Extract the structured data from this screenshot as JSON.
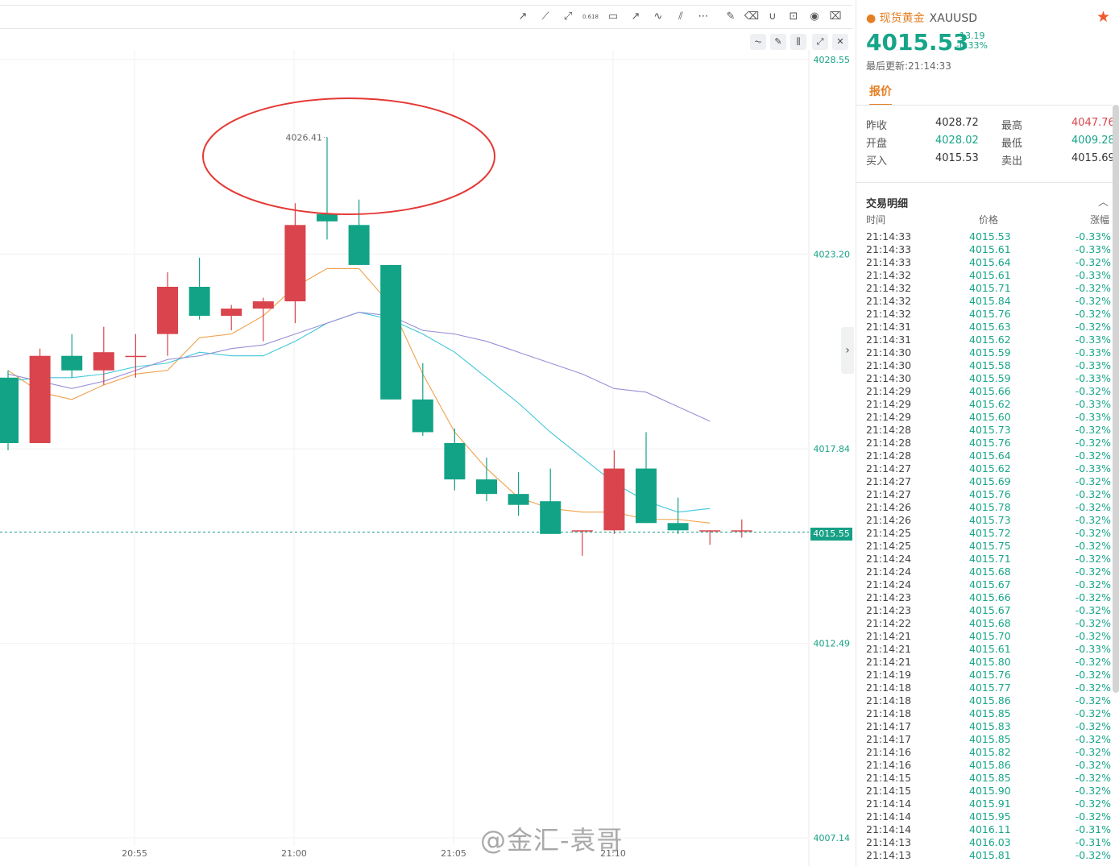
{
  "chart_data": {
    "type": "candlestick",
    "y_ticks": [
      "4028.55",
      "4023.20",
      "4017.84",
      "4012.49",
      "4007.14"
    ],
    "x_ticks": [
      "20:55",
      "21:00",
      "21:05",
      "21:10"
    ],
    "ylim": [
      4007.14,
      4028.55
    ],
    "current_price_label": "4015.55",
    "high_annotation": "4026.41",
    "candles": [
      {
        "open": 4019.8,
        "close": 4018.0,
        "high": 4020.0,
        "low": 4017.8
      },
      {
        "open": 4018.0,
        "close": 4020.4,
        "high": 4020.6,
        "low": 4018.0
      },
      {
        "open": 4020.4,
        "close": 4020.0,
        "high": 4021.0,
        "low": 4019.8
      },
      {
        "open": 4020.0,
        "close": 4020.5,
        "high": 4021.2,
        "low": 4019.6
      },
      {
        "open": 4020.4,
        "close": 4020.4,
        "high": 4021.0,
        "low": 4019.8
      },
      {
        "open": 4021.0,
        "close": 4022.3,
        "high": 4022.7,
        "low": 4020.4
      },
      {
        "open": 4022.3,
        "close": 4021.5,
        "high": 4023.1,
        "low": 4021.4
      },
      {
        "open": 4021.5,
        "close": 4021.7,
        "high": 4021.8,
        "low": 4021.1
      },
      {
        "open": 4021.7,
        "close": 4021.9,
        "high": 4022.0,
        "low": 4020.8
      },
      {
        "open": 4021.9,
        "close": 4024.0,
        "high": 4024.6,
        "low": 4021.3
      },
      {
        "open": 4024.3,
        "close": 4024.1,
        "high": 4026.41,
        "low": 4023.6
      },
      {
        "open": 4024.0,
        "close": 4022.9,
        "high": 4024.7,
        "low": 4022.9
      },
      {
        "open": 4022.9,
        "close": 4019.2,
        "high": 4022.9,
        "low": 4019.2
      },
      {
        "open": 4019.2,
        "close": 4018.3,
        "high": 4020.2,
        "low": 4018.2
      },
      {
        "open": 4018.0,
        "close": 4017.0,
        "high": 4018.4,
        "low": 4016.7
      },
      {
        "open": 4017.0,
        "close": 4016.6,
        "high": 4017.6,
        "low": 4016.4
      },
      {
        "open": 4016.6,
        "close": 4016.3,
        "high": 4017.2,
        "low": 4016.0
      },
      {
        "open": 4016.4,
        "close": 4015.5,
        "high": 4017.3,
        "low": 4015.5
      },
      {
        "open": 4015.6,
        "close": 4015.6,
        "high": 4015.6,
        "low": 4014.9
      },
      {
        "open": 4015.6,
        "close": 4017.3,
        "high": 4017.8,
        "low": 4015.5
      },
      {
        "open": 4017.3,
        "close": 4015.8,
        "high": 4018.3,
        "low": 4015.8
      },
      {
        "open": 4015.8,
        "close": 4015.6,
        "high": 4016.5,
        "low": 4015.5
      },
      {
        "open": 4015.6,
        "close": 4015.6,
        "high": 4015.6,
        "low": 4015.2
      },
      {
        "open": 4015.6,
        "close": 4015.6,
        "high": 4015.9,
        "low": 4015.4
      }
    ],
    "series": [
      {
        "color": "#f0a04b",
        "values": [
          4020.0,
          4019.4,
          4019.2,
          4019.6,
          4019.9,
          4020.0,
          4020.9,
          4021.0,
          4021.5,
          4022.3,
          4022.8,
          4022.8,
          4021.8,
          4019.9,
          4018.3,
          4017.3,
          4016.5,
          4016.2,
          4016.1,
          4016.1,
          4015.9,
          4015.9,
          4015.8
        ]
      },
      {
        "color": "#3fc8d8",
        "values": [
          4019.7,
          4019.8,
          4019.8,
          4019.9,
          4020.1,
          4020.2,
          4020.5,
          4020.4,
          4020.4,
          4020.8,
          4021.3,
          4021.6,
          4021.4,
          4021.0,
          4020.5,
          4019.8,
          4019.1,
          4018.3,
          4017.6,
          4016.9,
          4016.4,
          4016.1,
          4016.2
        ]
      },
      {
        "color": "#9a8fd6",
        "values": [
          4019.9,
          4019.7,
          4019.5,
          4019.7,
          4020.0,
          4020.3,
          4020.4,
          4020.6,
          4020.7,
          4021.0,
          4021.3,
          4021.6,
          4021.5,
          4021.1,
          4021.0,
          4020.8,
          4020.5,
          4020.2,
          4019.9,
          4019.5,
          4019.4,
          4019.0,
          4018.6
        ]
      }
    ],
    "up_color": "#d9444d",
    "down_color": "#12a387"
  },
  "toolbar_icons": [
    "trend-line-icon",
    "ray-icon",
    "extended-line-icon",
    "fibonacci-icon",
    "rectangle-icon",
    "arrow-icon",
    "polyline-icon",
    "parallel-channel-icon",
    "more-icon",
    "edit-note-icon",
    "eraser-icon",
    "magnet-icon",
    "lock-icon",
    "eye-icon",
    "trash-icon"
  ],
  "toolbar_fib_label": "0.618",
  "panel": {
    "name": "现货黄金",
    "symbol": "XAUUSD",
    "price": "4015.53",
    "change": "-13.19",
    "change_pct": "-0.33%",
    "updated": "最后更新:21:14:33",
    "tab": "报价",
    "quotes": {
      "prev_close_label": "昨收",
      "prev_close": "4028.72",
      "high_label": "最高",
      "high": "4047.76",
      "open_label": "开盘",
      "open": "4028.02",
      "low_label": "最低",
      "low": "4009.28",
      "bid_label": "买入",
      "bid": "4015.53",
      "ask_label": "卖出",
      "ask": "4015.69"
    },
    "detail_title": "交易明细",
    "headers": [
      "时间",
      "价格",
      "涨幅"
    ],
    "trades": [
      [
        "21:14:33",
        "4015.53",
        "-0.33%"
      ],
      [
        "21:14:33",
        "4015.61",
        "-0.33%"
      ],
      [
        "21:14:33",
        "4015.64",
        "-0.32%"
      ],
      [
        "21:14:32",
        "4015.61",
        "-0.33%"
      ],
      [
        "21:14:32",
        "4015.71",
        "-0.32%"
      ],
      [
        "21:14:32",
        "4015.84",
        "-0.32%"
      ],
      [
        "21:14:32",
        "4015.76",
        "-0.32%"
      ],
      [
        "21:14:31",
        "4015.63",
        "-0.32%"
      ],
      [
        "21:14:31",
        "4015.62",
        "-0.33%"
      ],
      [
        "21:14:30",
        "4015.59",
        "-0.33%"
      ],
      [
        "21:14:30",
        "4015.58",
        "-0.33%"
      ],
      [
        "21:14:30",
        "4015.59",
        "-0.33%"
      ],
      [
        "21:14:29",
        "4015.66",
        "-0.32%"
      ],
      [
        "21:14:29",
        "4015.62",
        "-0.33%"
      ],
      [
        "21:14:29",
        "4015.60",
        "-0.33%"
      ],
      [
        "21:14:28",
        "4015.73",
        "-0.32%"
      ],
      [
        "21:14:28",
        "4015.76",
        "-0.32%"
      ],
      [
        "21:14:28",
        "4015.64",
        "-0.32%"
      ],
      [
        "21:14:27",
        "4015.62",
        "-0.33%"
      ],
      [
        "21:14:27",
        "4015.69",
        "-0.32%"
      ],
      [
        "21:14:27",
        "4015.76",
        "-0.32%"
      ],
      [
        "21:14:26",
        "4015.78",
        "-0.32%"
      ],
      [
        "21:14:26",
        "4015.73",
        "-0.32%"
      ],
      [
        "21:14:25",
        "4015.72",
        "-0.32%"
      ],
      [
        "21:14:25",
        "4015.75",
        "-0.32%"
      ],
      [
        "21:14:24",
        "4015.71",
        "-0.32%"
      ],
      [
        "21:14:24",
        "4015.68",
        "-0.32%"
      ],
      [
        "21:14:24",
        "4015.67",
        "-0.32%"
      ],
      [
        "21:14:23",
        "4015.66",
        "-0.32%"
      ],
      [
        "21:14:23",
        "4015.67",
        "-0.32%"
      ],
      [
        "21:14:22",
        "4015.68",
        "-0.32%"
      ],
      [
        "21:14:21",
        "4015.70",
        "-0.32%"
      ],
      [
        "21:14:21",
        "4015.61",
        "-0.33%"
      ],
      [
        "21:14:21",
        "4015.80",
        "-0.32%"
      ],
      [
        "21:14:19",
        "4015.76",
        "-0.32%"
      ],
      [
        "21:14:18",
        "4015.77",
        "-0.32%"
      ],
      [
        "21:14:18",
        "4015.86",
        "-0.32%"
      ],
      [
        "21:14:18",
        "4015.85",
        "-0.32%"
      ],
      [
        "21:14:17",
        "4015.83",
        "-0.32%"
      ],
      [
        "21:14:17",
        "4015.85",
        "-0.32%"
      ],
      [
        "21:14:16",
        "4015.82",
        "-0.32%"
      ],
      [
        "21:14:16",
        "4015.86",
        "-0.32%"
      ],
      [
        "21:14:15",
        "4015.85",
        "-0.32%"
      ],
      [
        "21:14:15",
        "4015.90",
        "-0.32%"
      ],
      [
        "21:14:14",
        "4015.91",
        "-0.32%"
      ],
      [
        "21:14:14",
        "4015.95",
        "-0.32%"
      ],
      [
        "21:14:14",
        "4016.11",
        "-0.31%"
      ],
      [
        "21:14:13",
        "4016.03",
        "-0.31%"
      ],
      [
        "21:14:13",
        "4015.81",
        "-0.32%"
      ]
    ]
  },
  "watermark": "@金汇-袁哥"
}
